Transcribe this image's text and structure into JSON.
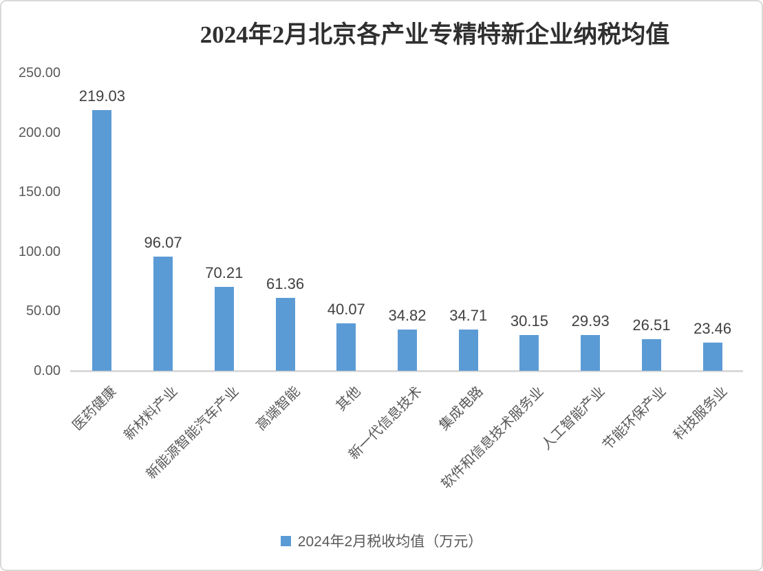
{
  "chart_data": {
    "type": "bar",
    "title": "2024年2月北京各产业专精特新企业纳税均值",
    "categories": [
      "医药健康",
      "新材料产业",
      "新能源智能汽车产业",
      "高端智能",
      "其他",
      "新一代信息技术",
      "集成电路",
      "软件和信息技术服务业",
      "人工智能产业",
      "节能环保产业",
      "科技服务业"
    ],
    "series": [
      {
        "name": "2024年2月税收均值（万元）",
        "values": [
          219.03,
          96.07,
          70.21,
          61.36,
          40.07,
          34.82,
          34.71,
          30.15,
          29.93,
          26.51,
          23.46
        ]
      }
    ],
    "value_labels": [
      "219.03",
      "96.07",
      "70.21",
      "61.36",
      "40.07",
      "34.82",
      "34.71",
      "30.15",
      "29.93",
      "26.51",
      "23.46"
    ],
    "xlabel": "",
    "ylabel": "",
    "ylim": [
      0,
      250
    ],
    "ytick_labels": [
      "0.00",
      "50.00",
      "100.00",
      "150.00",
      "200.00",
      "250.00"
    ],
    "grid": false,
    "legend_position": "bottom",
    "bar_color": "#5B9BD5"
  },
  "colors": {
    "bar": "#5B9BD5",
    "axis_line": "#D9D9D9",
    "canvas_border": "#D9D9D9",
    "title_text": "#2F2F2F",
    "value_label_text": "#404040",
    "tick_text": "#595959",
    "category_text": "#595959",
    "legend_text": "#595959",
    "background": "#FFFFFF"
  }
}
